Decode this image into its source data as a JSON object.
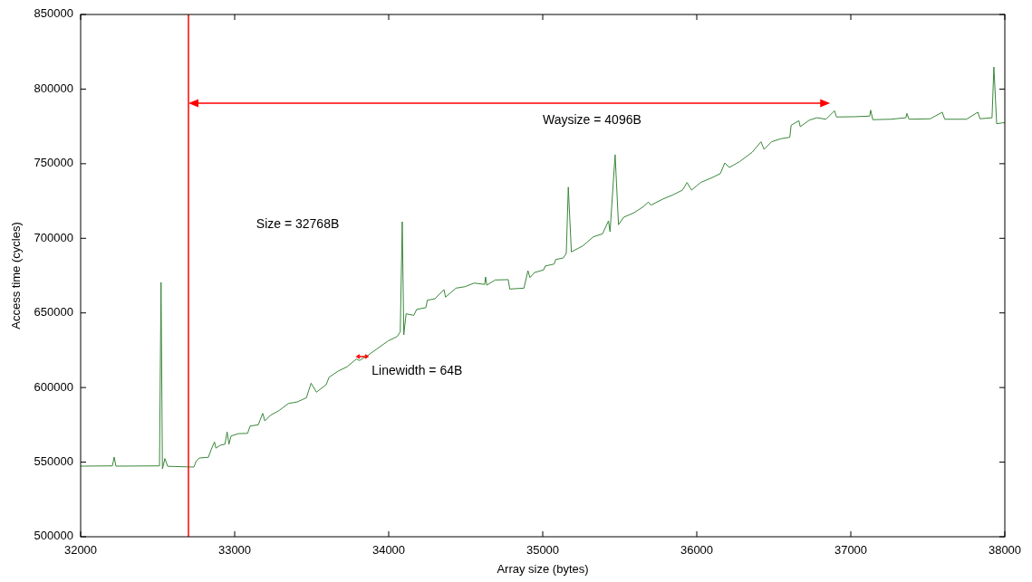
{
  "chart_data": {
    "type": "line",
    "xlabel": "Array size (bytes)",
    "ylabel": "Access time (cycles)",
    "xlim": [
      32000,
      38000
    ],
    "xticks": [
      32000,
      33000,
      34000,
      35000,
      36000,
      37000,
      38000
    ],
    "ylim": [
      500000,
      850000
    ],
    "yticks": [
      500000,
      550000,
      600000,
      650000,
      700000,
      750000,
      800000,
      850000
    ],
    "grid": false,
    "marker": "none",
    "line_style": "solid",
    "ref_lines": [
      {
        "axis": "x",
        "value": 32700,
        "color": "#ff0000"
      }
    ],
    "annotations": [
      "Size = 32768B",
      "Waysize = 4096B",
      "Linewidth = 64B"
    ],
    "series": [
      {
        "color": "#3a873a",
        "x": [
          32000,
          32206,
          32218,
          32229,
          32512,
          32522,
          32531,
          32547,
          32565,
          32735,
          32751,
          32771,
          32829,
          32849,
          32869,
          32878,
          32908,
          32937,
          32951,
          32963,
          32976,
          33025,
          33084,
          33100,
          33153,
          33182,
          33196,
          33231,
          33290,
          33349,
          33408,
          33466,
          33496,
          33531,
          33594,
          33613,
          33672,
          33731,
          33790,
          33810,
          33859,
          33928,
          33996,
          34055,
          34075,
          34088,
          34098,
          34113,
          34163,
          34182,
          34241,
          34251,
          34300,
          34359,
          34369,
          34437,
          34496,
          34555,
          34623,
          34629,
          34637,
          34692,
          34776,
          34786,
          34878,
          34904,
          34917,
          34947,
          35006,
          35016,
          35075,
          35084,
          35133,
          35153,
          35166,
          35186,
          35260,
          35329,
          35388,
          35427,
          35437,
          35470,
          35492,
          35525,
          35594,
          35653,
          35686,
          35702,
          35780,
          35849,
          35907,
          35937,
          35966,
          36025,
          36094,
          36153,
          36182,
          36212,
          36280,
          36359,
          36417,
          36437,
          36486,
          36545,
          36604,
          36613,
          36663,
          36672,
          36731,
          36780,
          36839,
          36894,
          36907,
          37025,
          37123,
          37129,
          37143,
          37260,
          37358,
          37364,
          37378,
          37516,
          37594,
          37610,
          37751,
          37825,
          37839,
          37917,
          37929,
          37947,
          37986,
          38000
        ],
        "values": [
          547300,
          547500,
          553400,
          547300,
          547500,
          670500,
          545500,
          552400,
          547200,
          546700,
          550800,
          552800,
          553200,
          558800,
          563500,
          559400,
          561400,
          562000,
          570200,
          562000,
          567500,
          569100,
          569300,
          574200,
          575000,
          582700,
          577600,
          581300,
          584700,
          589300,
          590400,
          593200,
          602900,
          596900,
          601900,
          606900,
          611000,
          614000,
          619100,
          618100,
          621100,
          626200,
          631200,
          634200,
          637300,
          711100,
          635300,
          649400,
          648400,
          652400,
          653500,
          658500,
          659500,
          665600,
          660600,
          666600,
          667600,
          670000,
          669100,
          674100,
          668600,
          672100,
          672300,
          666000,
          666600,
          678300,
          673700,
          677100,
          678800,
          681400,
          682800,
          685800,
          686800,
          689900,
          734300,
          690900,
          694900,
          701000,
          703000,
          711700,
          704400,
          756000,
          709100,
          714100,
          717200,
          721200,
          724300,
          722200,
          726300,
          729300,
          732300,
          737400,
          732300,
          737400,
          740400,
          743400,
          750500,
          747500,
          751500,
          757600,
          764700,
          759600,
          764700,
          766700,
          767700,
          775800,
          778800,
          774800,
          779200,
          780800,
          779800,
          785500,
          781300,
          781500,
          781900,
          785900,
          779500,
          779800,
          780800,
          783700,
          779800,
          780100,
          784500,
          779800,
          779800,
          784500,
          780100,
          780800,
          814800,
          776800,
          777400,
          777400
        ]
      }
    ]
  }
}
